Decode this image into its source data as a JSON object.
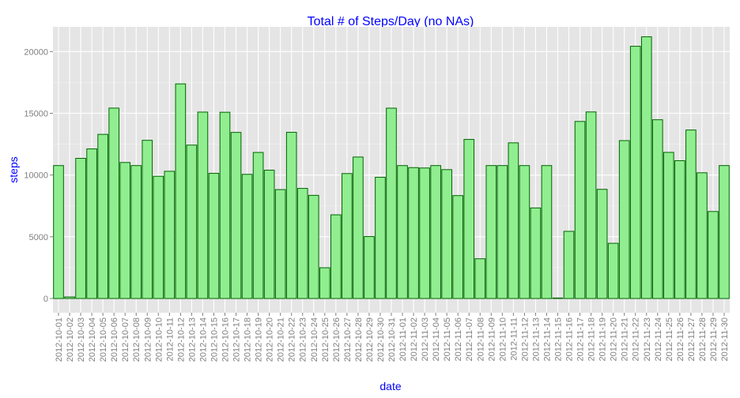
{
  "chart_data": {
    "type": "bar",
    "title": "Total # of Steps/Day (no NAs)",
    "xlabel": "date",
    "ylabel": "steps",
    "ylim": [
      -1150,
      22000
    ],
    "yticks": [
      0,
      5000,
      10000,
      15000,
      20000
    ],
    "grid": true,
    "colors": {
      "bar_fill": "#90ee90",
      "bar_stroke": "#006400",
      "panel_bg": "#e5e5e5",
      "grid": "#ffffff",
      "title": "#0000ff",
      "tick": "#7f7f7f"
    },
    "categories": [
      "2012-10-01",
      "2012-10-02",
      "2012-10-03",
      "2012-10-04",
      "2012-10-05",
      "2012-10-06",
      "2012-10-07",
      "2012-10-08",
      "2012-10-09",
      "2012-10-10",
      "2012-10-11",
      "2012-10-12",
      "2012-10-13",
      "2012-10-14",
      "2012-10-15",
      "2012-10-16",
      "2012-10-17",
      "2012-10-18",
      "2012-10-19",
      "2012-10-20",
      "2012-10-21",
      "2012-10-22",
      "2012-10-23",
      "2012-10-24",
      "2012-10-25",
      "2012-10-26",
      "2012-10-27",
      "2012-10-28",
      "2012-10-29",
      "2012-10-30",
      "2012-10-31",
      "2012-11-01",
      "2012-11-02",
      "2012-11-03",
      "2012-11-04",
      "2012-11-05",
      "2012-11-06",
      "2012-11-07",
      "2012-11-08",
      "2012-11-09",
      "2012-11-10",
      "2012-11-11",
      "2012-11-12",
      "2012-11-13",
      "2012-11-14",
      "2012-11-15",
      "2012-11-16",
      "2012-11-17",
      "2012-11-18",
      "2012-11-19",
      "2012-11-20",
      "2012-11-21",
      "2012-11-22",
      "2012-11-23",
      "2012-11-24",
      "2012-11-25",
      "2012-11-26",
      "2012-11-27",
      "2012-11-28",
      "2012-11-29",
      "2012-11-30"
    ],
    "values": [
      10766,
      126,
      11352,
      12116,
      13294,
      15420,
      11015,
      10766,
      12811,
      9900,
      10304,
      17382,
      12426,
      15098,
      10139,
      15084,
      13452,
      10056,
      11829,
      10395,
      8821,
      13460,
      8918,
      8355,
      2492,
      6778,
      10119,
      11458,
      5018,
      9819,
      15414,
      10766,
      10600,
      10571,
      10766,
      10439,
      8334,
      12883,
      3219,
      10766,
      10766,
      12608,
      10765,
      7336,
      10766,
      41,
      5441,
      14339,
      15110,
      8841,
      4472,
      12787,
      20427,
      21194,
      14478,
      11834,
      11162,
      13646,
      10183,
      7047,
      10766
    ]
  }
}
